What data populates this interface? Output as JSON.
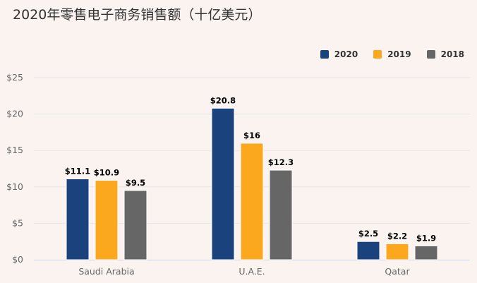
{
  "chart_data": {
    "type": "bar",
    "title": "2020年零售电子商务销售额（十亿美元）",
    "categories": [
      "Saudi Arabia",
      "U.A.E.",
      "Qatar"
    ],
    "series": [
      {
        "name": "2020",
        "color": "#1a427d",
        "values": [
          11.1,
          20.8,
          2.5
        ],
        "labels": [
          "$11.1",
          "$20.8",
          "$2.5"
        ]
      },
      {
        "name": "2019",
        "color": "#fba81e",
        "values": [
          10.9,
          16,
          2.2
        ],
        "labels": [
          "$10.9",
          "$16",
          "$2.2"
        ]
      },
      {
        "name": "2018",
        "color": "#666666",
        "values": [
          9.5,
          12.3,
          1.9
        ],
        "labels": [
          "$9.5",
          "$12.3",
          "$1.9"
        ]
      }
    ],
    "yticks": [
      0,
      5,
      10,
      15,
      20,
      25
    ],
    "ytick_labels": [
      "$0",
      "$5",
      "$10",
      "$15",
      "$20",
      "$25"
    ],
    "ylim": [
      0,
      25
    ],
    "xlabel": "",
    "ylabel": "",
    "grid": true,
    "legend_position": "top-right"
  }
}
